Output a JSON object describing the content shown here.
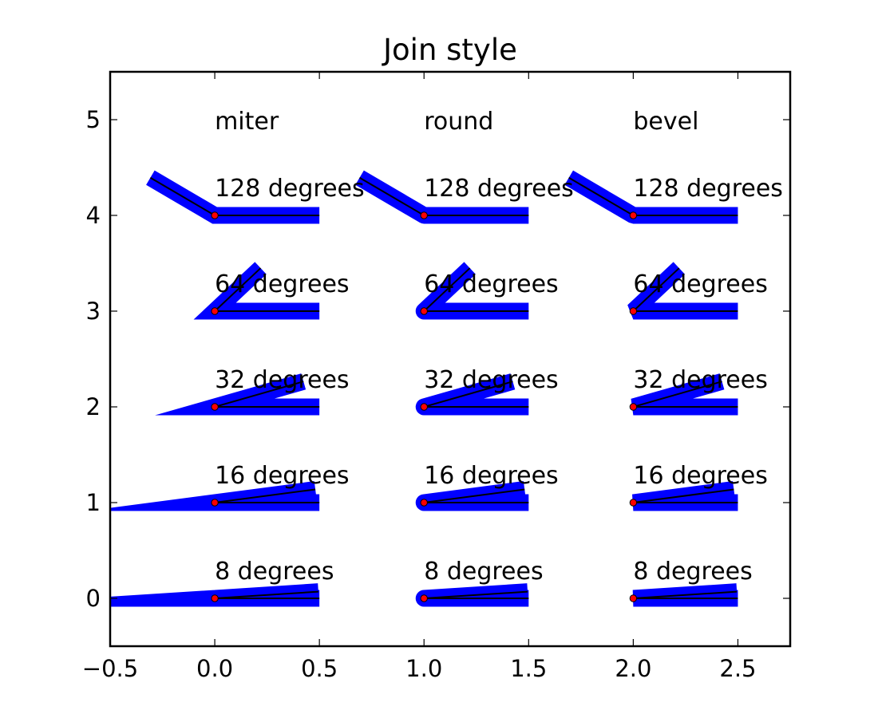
{
  "chart_data": {
    "type": "line",
    "title": "Join style",
    "xlabel": "",
    "ylabel": "",
    "xlim": [
      -0.5,
      2.75
    ],
    "ylim": [
      -0.5,
      5.5
    ],
    "grid": false,
    "x_ticks": [
      -0.5,
      0.0,
      0.5,
      1.0,
      1.5,
      2.0,
      2.5
    ],
    "x_tick_labels": [
      "−0.5",
      "0.0",
      "0.5",
      "1.0",
      "1.5",
      "2.0",
      "2.5"
    ],
    "y_ticks": [
      0,
      1,
      2,
      3,
      4,
      5
    ],
    "y_tick_labels": [
      "0",
      "1",
      "2",
      "3",
      "4",
      "5"
    ],
    "join_styles": [
      {
        "label": "miter",
        "x": 0.0
      },
      {
        "label": "round",
        "x": 1.0
      },
      {
        "label": "bevel",
        "x": 2.0
      }
    ],
    "angles": [
      {
        "degrees": 8,
        "y": 0,
        "label": "8 degrees"
      },
      {
        "degrees": 16,
        "y": 1,
        "label": "16 degrees"
      },
      {
        "degrees": 32,
        "y": 2,
        "label": "32 degrees"
      },
      {
        "degrees": 64,
        "y": 3,
        "label": "64 degrees"
      },
      {
        "degrees": 128,
        "y": 4,
        "label": "128 degrees"
      }
    ],
    "segment_length": 0.5,
    "colors": {
      "thick_stroke": "#0000ff",
      "thin_stroke": "#000000",
      "marker_fill": "#ff0000",
      "marker_edge": "#000000"
    }
  }
}
